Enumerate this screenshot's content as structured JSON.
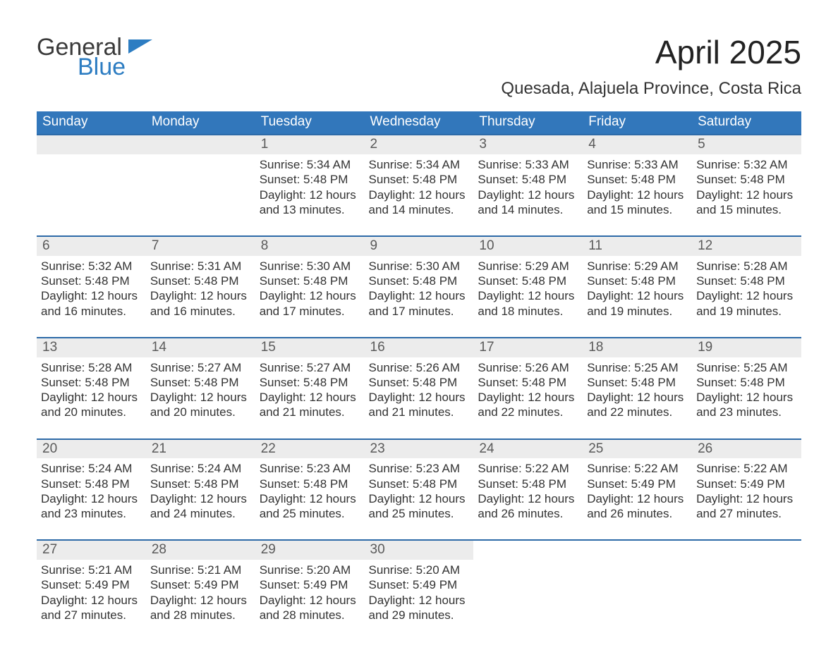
{
  "logo": {
    "line1": "General",
    "line2": "Blue",
    "dark": "#3a3a3a",
    "blue": "#2d7dc2"
  },
  "title": "April 2025",
  "location": "Quesada, Alajuela Province, Costa Rica",
  "colors": {
    "header_bg": "#3277bb",
    "row_separator": "#2d6aa8",
    "daynum_bg": "#ececec",
    "page_bg": "#ffffff",
    "text": "#2c2c2c"
  },
  "weekdays": [
    "Sunday",
    "Monday",
    "Tuesday",
    "Wednesday",
    "Thursday",
    "Friday",
    "Saturday"
  ],
  "leading_blanks": 2,
  "days": [
    {
      "n": 1,
      "sunrise": "5:34 AM",
      "sunset": "5:48 PM",
      "daylight": "12 hours and 13 minutes."
    },
    {
      "n": 2,
      "sunrise": "5:34 AM",
      "sunset": "5:48 PM",
      "daylight": "12 hours and 14 minutes."
    },
    {
      "n": 3,
      "sunrise": "5:33 AM",
      "sunset": "5:48 PM",
      "daylight": "12 hours and 14 minutes."
    },
    {
      "n": 4,
      "sunrise": "5:33 AM",
      "sunset": "5:48 PM",
      "daylight": "12 hours and 15 minutes."
    },
    {
      "n": 5,
      "sunrise": "5:32 AM",
      "sunset": "5:48 PM",
      "daylight": "12 hours and 15 minutes."
    },
    {
      "n": 6,
      "sunrise": "5:32 AM",
      "sunset": "5:48 PM",
      "daylight": "12 hours and 16 minutes."
    },
    {
      "n": 7,
      "sunrise": "5:31 AM",
      "sunset": "5:48 PM",
      "daylight": "12 hours and 16 minutes."
    },
    {
      "n": 8,
      "sunrise": "5:30 AM",
      "sunset": "5:48 PM",
      "daylight": "12 hours and 17 minutes."
    },
    {
      "n": 9,
      "sunrise": "5:30 AM",
      "sunset": "5:48 PM",
      "daylight": "12 hours and 17 minutes."
    },
    {
      "n": 10,
      "sunrise": "5:29 AM",
      "sunset": "5:48 PM",
      "daylight": "12 hours and 18 minutes."
    },
    {
      "n": 11,
      "sunrise": "5:29 AM",
      "sunset": "5:48 PM",
      "daylight": "12 hours and 19 minutes."
    },
    {
      "n": 12,
      "sunrise": "5:28 AM",
      "sunset": "5:48 PM",
      "daylight": "12 hours and 19 minutes."
    },
    {
      "n": 13,
      "sunrise": "5:28 AM",
      "sunset": "5:48 PM",
      "daylight": "12 hours and 20 minutes."
    },
    {
      "n": 14,
      "sunrise": "5:27 AM",
      "sunset": "5:48 PM",
      "daylight": "12 hours and 20 minutes."
    },
    {
      "n": 15,
      "sunrise": "5:27 AM",
      "sunset": "5:48 PM",
      "daylight": "12 hours and 21 minutes."
    },
    {
      "n": 16,
      "sunrise": "5:26 AM",
      "sunset": "5:48 PM",
      "daylight": "12 hours and 21 minutes."
    },
    {
      "n": 17,
      "sunrise": "5:26 AM",
      "sunset": "5:48 PM",
      "daylight": "12 hours and 22 minutes."
    },
    {
      "n": 18,
      "sunrise": "5:25 AM",
      "sunset": "5:48 PM",
      "daylight": "12 hours and 22 minutes."
    },
    {
      "n": 19,
      "sunrise": "5:25 AM",
      "sunset": "5:48 PM",
      "daylight": "12 hours and 23 minutes."
    },
    {
      "n": 20,
      "sunrise": "5:24 AM",
      "sunset": "5:48 PM",
      "daylight": "12 hours and 23 minutes."
    },
    {
      "n": 21,
      "sunrise": "5:24 AM",
      "sunset": "5:48 PM",
      "daylight": "12 hours and 24 minutes."
    },
    {
      "n": 22,
      "sunrise": "5:23 AM",
      "sunset": "5:48 PM",
      "daylight": "12 hours and 25 minutes."
    },
    {
      "n": 23,
      "sunrise": "5:23 AM",
      "sunset": "5:48 PM",
      "daylight": "12 hours and 25 minutes."
    },
    {
      "n": 24,
      "sunrise": "5:22 AM",
      "sunset": "5:48 PM",
      "daylight": "12 hours and 26 minutes."
    },
    {
      "n": 25,
      "sunrise": "5:22 AM",
      "sunset": "5:49 PM",
      "daylight": "12 hours and 26 minutes."
    },
    {
      "n": 26,
      "sunrise": "5:22 AM",
      "sunset": "5:49 PM",
      "daylight": "12 hours and 27 minutes."
    },
    {
      "n": 27,
      "sunrise": "5:21 AM",
      "sunset": "5:49 PM",
      "daylight": "12 hours and 27 minutes."
    },
    {
      "n": 28,
      "sunrise": "5:21 AM",
      "sunset": "5:49 PM",
      "daylight": "12 hours and 28 minutes."
    },
    {
      "n": 29,
      "sunrise": "5:20 AM",
      "sunset": "5:49 PM",
      "daylight": "12 hours and 28 minutes."
    },
    {
      "n": 30,
      "sunrise": "5:20 AM",
      "sunset": "5:49 PM",
      "daylight": "12 hours and 29 minutes."
    }
  ],
  "labels": {
    "sunrise": "Sunrise:",
    "sunset": "Sunset:",
    "daylight": "Daylight:"
  }
}
